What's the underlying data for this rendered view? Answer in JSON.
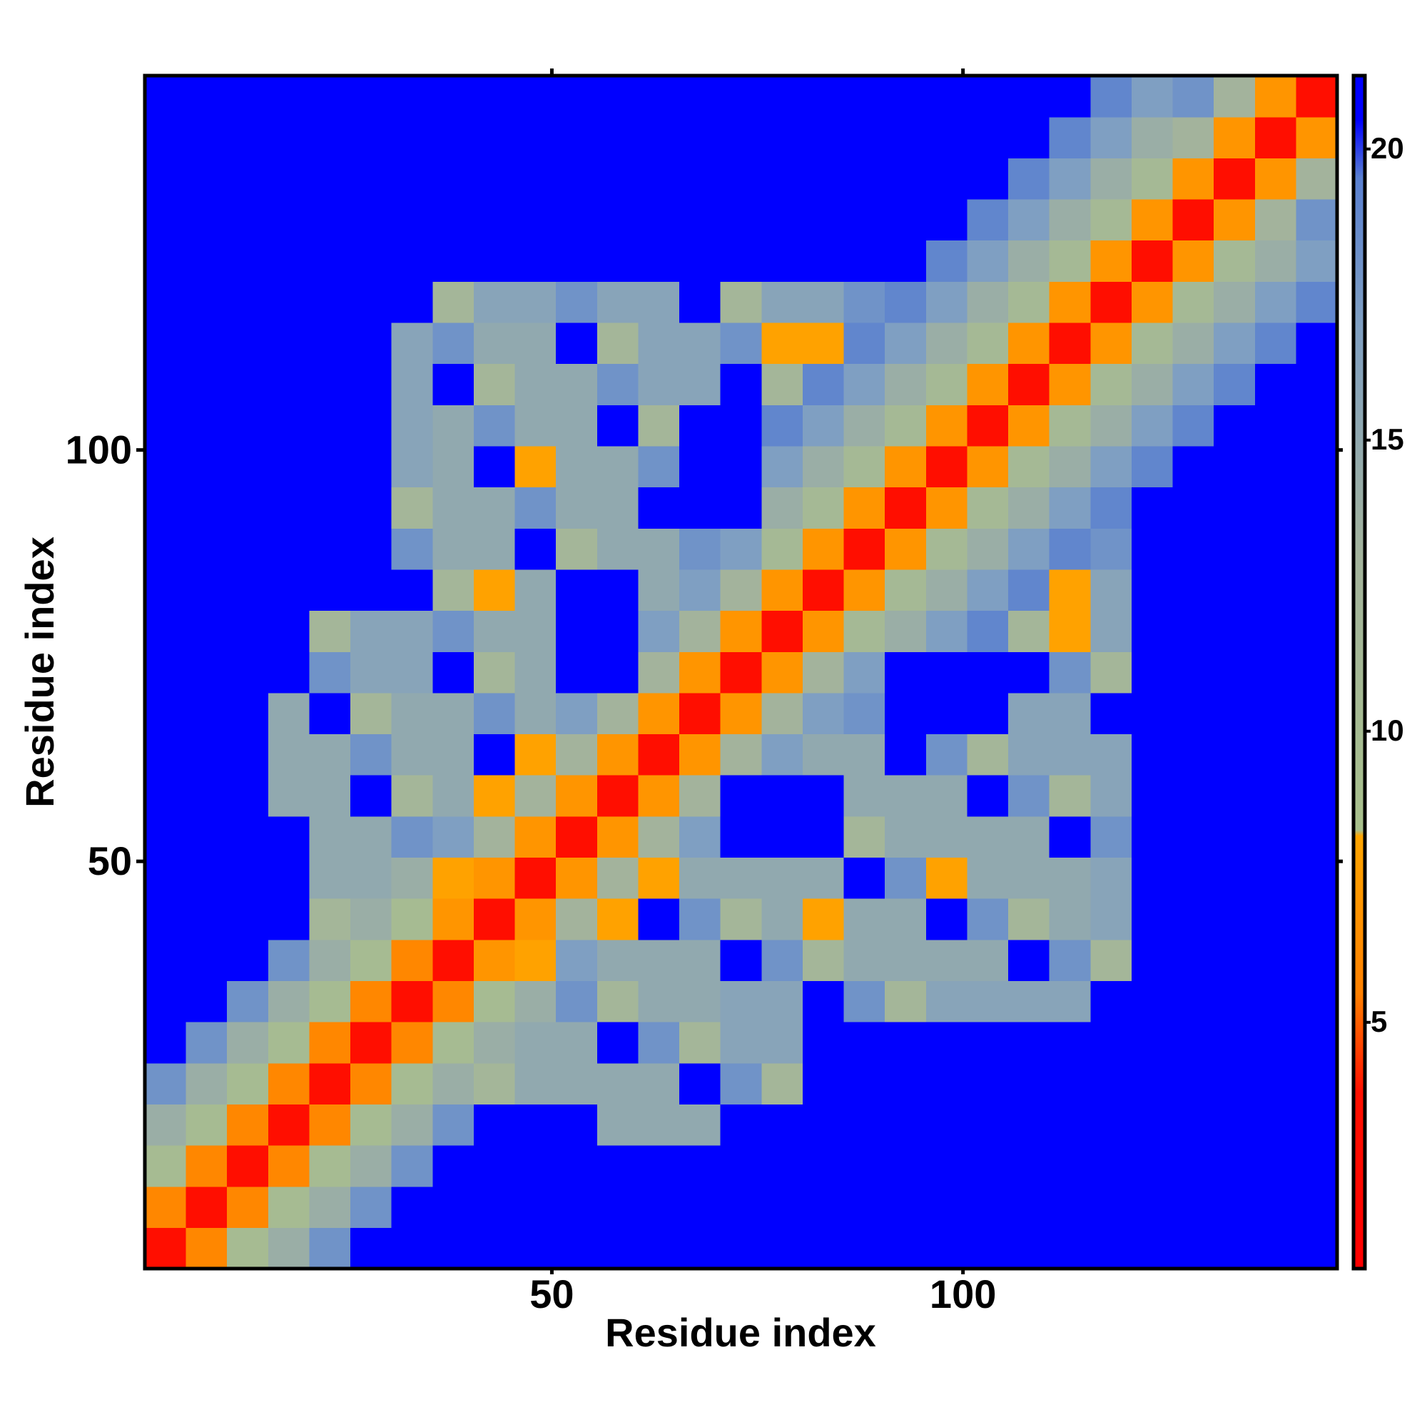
{
  "chart_data": {
    "type": "heatmap",
    "xlabel": "Residue index",
    "ylabel": "Residue index",
    "x": [
      3,
      8,
      13,
      18,
      23,
      28,
      33,
      38,
      43,
      48,
      53,
      58,
      63,
      68,
      73,
      78,
      83,
      88,
      93,
      98,
      103,
      108,
      113,
      118,
      123,
      128,
      133,
      138,
      143
    ],
    "y": [
      3,
      8,
      13,
      18,
      23,
      28,
      33,
      38,
      43,
      48,
      53,
      58,
      63,
      68,
      73,
      78,
      83,
      88,
      93,
      98,
      103,
      108,
      113,
      118,
      123,
      128,
      133,
      138,
      143
    ],
    "xlim": [
      0.5,
      145.5
    ],
    "ylim": [
      0.5,
      145.5
    ],
    "xticks": [
      50,
      100
    ],
    "yticks": [
      50,
      100
    ],
    "clim": [
      0.77,
      21.26
    ],
    "cticks": [
      5,
      10,
      15,
      20
    ],
    "colorscale": [
      [
        0.77,
        "#ff0000"
      ],
      [
        3.8,
        "#ff1000"
      ],
      [
        5.5,
        "#ff8000"
      ],
      [
        8.2,
        "#ffa500"
      ],
      [
        8.3,
        "#a8c08c"
      ],
      [
        13,
        "#a3b39c"
      ],
      [
        17,
        "#7f9fc2"
      ],
      [
        19.5,
        "#5a80d0"
      ],
      [
        20.5,
        "#0000ff"
      ],
      [
        21.26,
        "#0000ff"
      ]
    ],
    "z": [
      [
        3.5,
        6,
        10,
        14,
        18,
        21,
        21,
        21,
        21,
        21,
        21,
        21,
        21,
        21,
        21,
        21,
        21,
        21,
        21,
        21,
        21,
        21,
        21,
        21,
        21,
        21,
        21,
        21,
        21
      ],
      [
        6,
        3.5,
        6,
        10,
        14,
        18,
        21,
        21,
        21,
        21,
        21,
        21,
        21,
        21,
        21,
        21,
        21,
        21,
        21,
        21,
        21,
        21,
        21,
        21,
        21,
        21,
        21,
        21,
        21
      ],
      [
        10,
        6,
        3.5,
        6,
        10,
        14,
        18,
        21,
        21,
        21,
        21,
        21,
        21,
        21,
        21,
        21,
        21,
        21,
        21,
        21,
        21,
        21,
        21,
        21,
        21,
        21,
        21,
        21,
        21
      ],
      [
        14,
        10,
        6,
        3.5,
        6,
        10,
        14,
        18,
        21,
        21,
        21,
        15,
        15,
        15,
        21,
        21,
        21,
        21,
        21,
        21,
        21,
        21,
        21,
        21,
        21,
        21,
        21,
        21,
        21
      ],
      [
        18,
        14,
        10,
        6,
        3.5,
        6,
        10,
        14,
        12,
        15,
        15,
        15,
        15,
        21,
        18,
        12,
        21,
        21,
        21,
        21,
        21,
        21,
        21,
        21,
        21,
        21,
        21,
        21,
        21
      ],
      [
        21,
        18,
        14,
        10,
        6,
        3.5,
        6,
        10,
        14,
        15,
        15,
        21,
        18,
        12,
        16,
        16,
        21,
        21,
        21,
        21,
        21,
        21,
        21,
        21,
        21,
        21,
        21,
        21,
        21
      ],
      [
        21,
        21,
        18,
        14,
        10,
        6,
        3.5,
        6,
        10,
        14,
        18,
        12,
        15,
        15,
        16,
        16,
        21,
        18,
        12,
        16,
        16,
        16,
        16,
        21,
        21,
        21,
        21,
        21,
        21
      ],
      [
        21,
        21,
        21,
        18,
        14,
        10,
        6,
        3.5,
        7,
        8,
        17,
        15,
        15,
        15,
        21,
        18,
        12,
        15,
        15,
        15,
        15,
        21,
        18,
        12,
        21,
        21,
        21,
        21,
        21
      ],
      [
        21,
        21,
        21,
        21,
        12,
        14,
        10,
        7,
        3.5,
        7,
        13,
        8,
        21,
        18,
        12,
        15,
        8,
        15,
        15,
        21,
        18,
        12,
        15,
        16,
        21,
        21,
        21,
        21,
        21
      ],
      [
        21,
        21,
        21,
        21,
        15,
        15,
        14,
        8,
        7,
        3.5,
        7,
        13,
        8,
        15,
        15,
        15,
        15,
        21,
        18,
        8,
        15,
        15,
        15,
        16,
        21,
        21,
        21,
        21,
        21
      ],
      [
        21,
        21,
        21,
        21,
        15,
        15,
        18,
        17,
        13,
        7,
        3.5,
        7,
        13,
        17,
        21,
        21,
        21,
        12,
        15,
        15,
        15,
        15,
        21,
        18,
        21,
        21,
        21,
        21,
        21
      ],
      [
        21,
        21,
        21,
        15,
        15,
        21,
        12,
        15,
        8,
        13,
        7,
        3.5,
        7,
        13,
        21,
        21,
        21,
        15,
        15,
        15,
        21,
        18,
        12,
        16,
        21,
        21,
        21,
        21,
        21
      ],
      [
        21,
        21,
        21,
        15,
        15,
        18,
        15,
        15,
        21,
        8,
        13,
        7,
        3.5,
        7,
        13,
        17,
        15,
        15,
        21,
        18,
        12,
        16,
        16,
        16,
        21,
        21,
        21,
        21,
        21
      ],
      [
        21,
        21,
        21,
        15,
        21,
        12,
        15,
        15,
        18,
        15,
        17,
        13,
        7,
        3.5,
        7,
        13,
        17,
        18,
        21,
        21,
        21,
        16,
        16,
        21,
        21,
        21,
        21,
        21,
        21
      ],
      [
        21,
        21,
        21,
        21,
        18,
        16,
        16,
        21,
        12,
        15,
        21,
        21,
        13,
        7,
        3.5,
        7,
        13,
        17,
        21,
        21,
        21,
        21,
        18,
        12,
        21,
        21,
        21,
        21,
        21
      ],
      [
        21,
        21,
        21,
        21,
        12,
        16,
        16,
        18,
        15,
        15,
        21,
        21,
        17,
        13,
        7,
        3.5,
        7,
        11,
        14,
        17,
        19,
        12,
        8,
        16,
        21,
        21,
        21,
        21,
        21
      ],
      [
        21,
        21,
        21,
        21,
        21,
        21,
        21,
        12,
        8,
        15,
        21,
        21,
        15,
        17,
        13,
        7,
        3.5,
        7,
        11,
        14,
        17,
        19,
        8,
        16,
        21,
        21,
        21,
        21,
        21
      ],
      [
        21,
        21,
        21,
        21,
        21,
        21,
        18,
        15,
        15,
        21,
        12,
        15,
        15,
        18,
        17,
        11,
        7,
        3.5,
        7,
        11,
        14,
        17,
        19,
        18,
        21,
        21,
        21,
        21,
        21
      ],
      [
        21,
        21,
        21,
        21,
        21,
        21,
        12,
        15,
        15,
        18,
        15,
        15,
        21,
        21,
        21,
        14,
        11,
        7,
        3.5,
        7,
        11,
        14,
        17,
        19,
        21,
        21,
        21,
        21,
        21
      ],
      [
        21,
        21,
        21,
        21,
        21,
        21,
        16,
        15,
        21,
        8,
        15,
        15,
        18,
        21,
        21,
        17,
        14,
        11,
        7,
        3.5,
        7,
        11,
        14,
        17,
        19,
        21,
        21,
        21,
        21
      ],
      [
        21,
        21,
        21,
        21,
        21,
        21,
        16,
        15,
        18,
        15,
        15,
        21,
        12,
        21,
        21,
        19,
        17,
        14,
        11,
        7,
        3.5,
        7,
        11,
        14,
        17,
        19,
        21,
        21,
        21
      ],
      [
        21,
        21,
        21,
        21,
        21,
        21,
        16,
        21,
        12,
        15,
        15,
        18,
        16,
        16,
        21,
        12,
        19,
        17,
        14,
        11,
        7,
        3.5,
        7,
        11,
        14,
        17,
        19,
        21,
        21
      ],
      [
        21,
        21,
        21,
        21,
        21,
        21,
        16,
        18,
        15,
        15,
        21,
        12,
        16,
        16,
        18,
        8,
        8,
        19,
        17,
        14,
        11,
        7,
        3.5,
        7,
        11,
        14,
        17,
        19,
        21
      ],
      [
        21,
        21,
        21,
        21,
        21,
        21,
        21,
        12,
        16,
        16,
        18,
        16,
        16,
        21,
        12,
        16,
        16,
        18,
        19,
        17,
        14,
        11,
        7,
        3.5,
        7,
        11,
        14,
        17,
        19
      ],
      [
        21,
        21,
        21,
        21,
        21,
        21,
        21,
        21,
        21,
        21,
        21,
        21,
        21,
        21,
        21,
        21,
        21,
        21,
        21,
        19,
        17,
        14,
        11,
        7,
        3.5,
        7,
        11,
        14,
        17
      ],
      [
        21,
        21,
        21,
        21,
        21,
        21,
        21,
        21,
        21,
        21,
        21,
        21,
        21,
        21,
        21,
        21,
        21,
        21,
        21,
        21,
        19,
        17,
        14,
        11,
        7,
        3.5,
        7,
        13,
        18
      ],
      [
        21,
        21,
        21,
        21,
        21,
        21,
        21,
        21,
        21,
        21,
        21,
        21,
        21,
        21,
        21,
        21,
        21,
        21,
        21,
        21,
        21,
        19,
        17,
        14,
        11,
        7,
        3.5,
        7,
        13
      ],
      [
        21,
        21,
        21,
        21,
        21,
        21,
        21,
        21,
        21,
        21,
        21,
        21,
        21,
        21,
        21,
        21,
        21,
        21,
        21,
        21,
        21,
        21,
        19,
        17,
        14,
        13,
        7,
        3.5,
        7
      ],
      [
        21,
        21,
        21,
        21,
        21,
        21,
        21,
        21,
        21,
        21,
        21,
        21,
        21,
        21,
        21,
        21,
        21,
        21,
        21,
        21,
        21,
        21,
        21,
        19,
        17,
        18,
        13,
        7,
        3.5
      ]
    ]
  }
}
